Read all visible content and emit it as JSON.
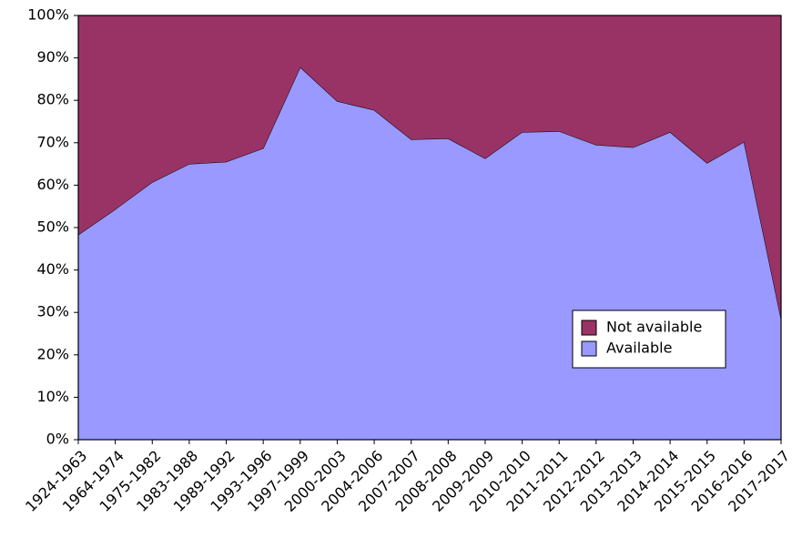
{
  "chart_data": {
    "type": "stacked-area",
    "categories": [
      "1924-1963",
      "1964-1974",
      "1975-1982",
      "1983-1988",
      "1989-1992",
      "1993-1996",
      "1997-1999",
      "2000-2003",
      "2004-2006",
      "2007-2007",
      "2008-2008",
      "2009-2009",
      "2010-2010",
      "2011-2011",
      "2012-2012",
      "2013-2013",
      "2014-2014",
      "2015-2015",
      "2016-2016",
      "2017-2017"
    ],
    "series": [
      {
        "name": "Available",
        "color": "#9999ff",
        "values": [
          48.3,
          54.3,
          60.7,
          65.0,
          65.5,
          68.7,
          87.8,
          79.8,
          77.7,
          70.8,
          71.0,
          66.3,
          72.5,
          72.7,
          69.5,
          68.9,
          72.5,
          65.2,
          70.2,
          28.5
        ]
      },
      {
        "name": "Not available",
        "color": "#993366",
        "values": [
          51.7,
          45.7,
          39.3,
          35.0,
          34.5,
          31.3,
          12.2,
          20.2,
          22.3,
          29.2,
          29.0,
          33.7,
          27.5,
          27.3,
          30.5,
          31.1,
          27.5,
          34.8,
          29.8,
          71.5
        ]
      }
    ],
    "ylim": [
      0,
      100
    ],
    "yticks": [
      {
        "value": 0,
        "label": "0%"
      },
      {
        "value": 10,
        "label": "10%"
      },
      {
        "value": 20,
        "label": "20%"
      },
      {
        "value": 30,
        "label": "30%"
      },
      {
        "value": 40,
        "label": "40%"
      },
      {
        "value": 50,
        "label": "50%"
      },
      {
        "value": 60,
        "label": "60%"
      },
      {
        "value": 70,
        "label": "70%"
      },
      {
        "value": 80,
        "label": "80%"
      },
      {
        "value": 90,
        "label": "90%"
      },
      {
        "value": 100,
        "label": "100%"
      }
    ],
    "legend": "lower right"
  }
}
